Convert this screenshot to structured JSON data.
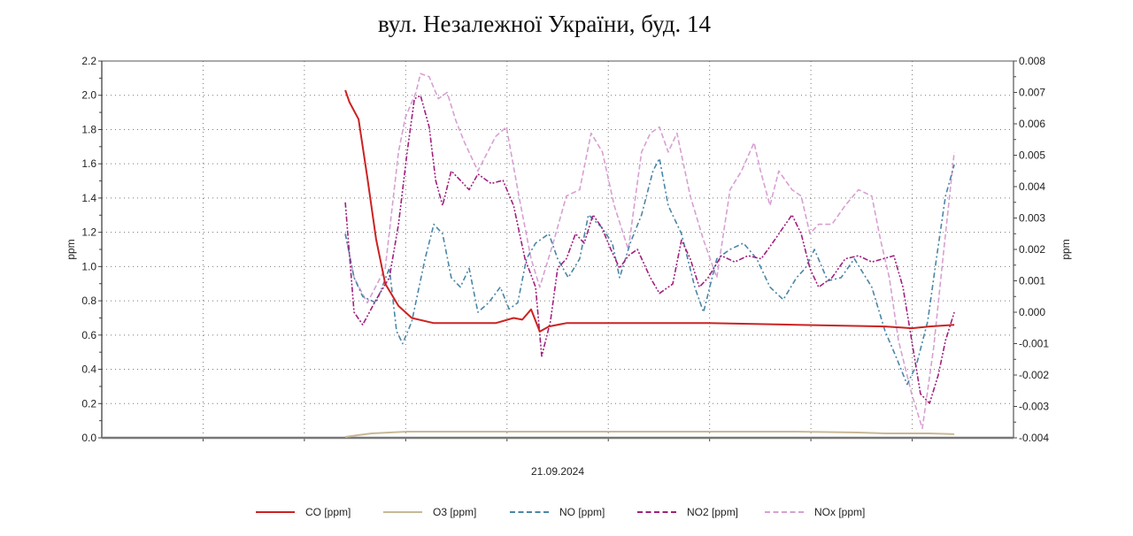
{
  "chart_data": {
    "type": "line",
    "title": "вул. Незалежної України, буд. 14",
    "xlabel": "21.09.2024",
    "ylabel_left": "ppm",
    "ylabel_right": "ppm",
    "x_unit": "hours",
    "xlim": [
      0,
      24
    ],
    "ylim_left": [
      0,
      2.2
    ],
    "ylim_right": [
      -0.004,
      0.008
    ],
    "left_ticks": [
      "0.0",
      "0.2",
      "0.4",
      "0.6",
      "0.8",
      "1.0",
      "1.2",
      "1.4",
      "1.6",
      "1.8",
      "2.0",
      "2.2"
    ],
    "right_ticks": [
      "-0.004",
      "-0.003",
      "-0.002",
      "-0.001",
      "0.000",
      "0.001",
      "0.002",
      "0.003",
      "0.004",
      "0.005",
      "0.006",
      "0.007",
      "0.008"
    ],
    "grid": true,
    "legend_position": "bottom",
    "series": [
      {
        "name": "CO [ppm]",
        "axis": "left",
        "color": "#cc2222",
        "dash": "solid",
        "x": [
          6.41,
          6.52,
          6.76,
          6.99,
          7.22,
          7.46,
          7.81,
          8.16,
          8.74,
          10.37,
          10.84,
          11.07,
          11.3,
          11.53,
          11.77,
          12.23,
          13.63,
          15.03,
          15.96,
          18.29,
          20.62,
          21.32,
          21.79,
          22.44
        ],
        "y": [
          2.03,
          1.96,
          1.86,
          1.52,
          1.16,
          0.9,
          0.77,
          0.7,
          0.67,
          0.67,
          0.7,
          0.69,
          0.75,
          0.62,
          0.65,
          0.67,
          0.67,
          0.67,
          0.67,
          0.66,
          0.65,
          0.64,
          0.65,
          0.66
        ]
      },
      {
        "name": "O3 [ppm]",
        "axis": "left",
        "color": "#c8b896",
        "dash": "solid",
        "x": [
          6.41,
          6.76,
          7.11,
          7.57,
          8.04,
          11.3,
          18.29,
          19.92,
          20.62,
          21.79,
          22.44
        ],
        "y": [
          0.005,
          0.016,
          0.026,
          0.031,
          0.036,
          0.036,
          0.036,
          0.031,
          0.026,
          0.026,
          0.021
        ]
      },
      {
        "name": "NO [ppm]",
        "axis": "right",
        "color": "#4a86a6",
        "dash": "dashdot",
        "x": [
          6.41,
          6.64,
          6.87,
          7.22,
          7.57,
          7.76,
          7.92,
          8.16,
          8.51,
          8.74,
          8.97,
          9.2,
          9.44,
          9.67,
          9.9,
          10.18,
          10.49,
          10.72,
          10.95,
          11.18,
          11.42,
          11.77,
          12.0,
          12.28,
          12.58,
          12.81,
          13.16,
          13.44,
          13.63,
          13.91,
          14.21,
          14.51,
          14.68,
          14.91,
          15.26,
          15.61,
          15.84,
          16.19,
          16.54,
          16.89,
          17.24,
          17.59,
          17.94,
          18.29,
          18.52,
          18.76,
          19.11,
          19.46,
          19.81,
          20.27,
          20.62,
          20.9,
          21.2,
          21.44,
          21.74,
          21.97,
          22.21,
          22.44
        ],
        "y": [
          0.0025,
          0.0011,
          0.0005,
          0.0003,
          0.0014,
          -0.0006,
          -0.001,
          -0.0003,
          0.0017,
          0.0028,
          0.0025,
          0.0011,
          0.0008,
          0.0014,
          0.0,
          0.0003,
          0.0008,
          0.0001,
          0.0003,
          0.0017,
          0.0022,
          0.0025,
          0.0017,
          0.0011,
          0.0017,
          0.0031,
          0.0027,
          0.0022,
          0.0011,
          0.0022,
          0.0031,
          0.0045,
          0.0049,
          0.0034,
          0.0025,
          0.0008,
          0.0,
          0.0017,
          0.002,
          0.0022,
          0.0017,
          0.0008,
          0.0004,
          0.0011,
          0.0014,
          0.002,
          0.001,
          0.0011,
          0.0017,
          0.0008,
          -0.0006,
          -0.0014,
          -0.0023,
          -0.0017,
          -0.0003,
          0.0017,
          0.0037,
          0.0047
        ]
      },
      {
        "name": "NO2 [ppm]",
        "axis": "right",
        "color": "#a0207e",
        "dash": "dashdotdot",
        "x": [
          6.41,
          6.64,
          6.87,
          7.22,
          7.57,
          7.81,
          8.04,
          8.23,
          8.39,
          8.62,
          8.79,
          8.97,
          9.2,
          9.44,
          9.67,
          9.9,
          10.25,
          10.56,
          10.84,
          11.14,
          11.42,
          11.58,
          11.81,
          12.0,
          12.23,
          12.47,
          12.7,
          12.93,
          13.16,
          13.4,
          13.63,
          13.86,
          14.1,
          14.44,
          14.68,
          15.03,
          15.26,
          15.49,
          15.73,
          15.96,
          16.31,
          16.66,
          17.01,
          17.36,
          17.71,
          17.94,
          18.17,
          18.41,
          18.64,
          18.87,
          19.22,
          19.57,
          19.92,
          20.27,
          20.57,
          20.85,
          21.09,
          21.32,
          21.55,
          21.79,
          22.02,
          22.21,
          22.44
        ],
        "y": [
          0.0035,
          0.0,
          -0.0004,
          0.0004,
          0.0011,
          0.0028,
          0.0051,
          0.0068,
          0.0069,
          0.0059,
          0.0042,
          0.0034,
          0.0045,
          0.0042,
          0.0039,
          0.0044,
          0.0041,
          0.0042,
          0.0034,
          0.0017,
          0.0008,
          -0.0014,
          -0.0003,
          0.0014,
          0.0017,
          0.0025,
          0.0022,
          0.0031,
          0.0027,
          0.002,
          0.0014,
          0.0018,
          0.002,
          0.0011,
          0.0006,
          0.0009,
          0.0023,
          0.0017,
          0.0008,
          0.0011,
          0.0018,
          0.0016,
          0.0018,
          0.0017,
          0.0023,
          0.0027,
          0.0031,
          0.0025,
          0.0014,
          0.0008,
          0.0011,
          0.0017,
          0.0018,
          0.0016,
          0.0017,
          0.0018,
          0.0008,
          -0.0009,
          -0.0026,
          -0.0029,
          -0.002,
          -0.0009,
          0.0
        ]
      },
      {
        "name": "NOx [ppm]",
        "axis": "right",
        "color": "#d7a0d2",
        "dash": "dashed",
        "x": [
          6.41,
          6.64,
          6.99,
          7.46,
          7.81,
          7.99,
          8.27,
          8.39,
          8.62,
          8.86,
          9.09,
          9.32,
          9.55,
          9.9,
          10.37,
          10.65,
          10.98,
          11.3,
          11.53,
          11.88,
          12.23,
          12.58,
          12.88,
          13.18,
          13.49,
          13.86,
          14.21,
          14.44,
          14.68,
          14.91,
          15.14,
          15.49,
          15.84,
          16.19,
          16.54,
          16.84,
          17.17,
          17.34,
          17.59,
          17.82,
          18.17,
          18.41,
          18.64,
          18.87,
          19.22,
          19.57,
          19.92,
          20.27,
          20.5,
          20.73,
          20.97,
          21.32,
          21.6,
          21.9,
          22.14,
          22.44
        ],
        "y": [
          0.0025,
          0.0011,
          0.0003,
          0.0014,
          0.0051,
          0.0062,
          0.007,
          0.0076,
          0.0075,
          0.0068,
          0.007,
          0.0061,
          0.0054,
          0.0045,
          0.0056,
          0.0059,
          0.0037,
          0.0017,
          0.0008,
          0.0022,
          0.0037,
          0.0039,
          0.0057,
          0.0051,
          0.0034,
          0.002,
          0.0051,
          0.0057,
          0.0059,
          0.0051,
          0.0057,
          0.0037,
          0.0023,
          0.0011,
          0.0039,
          0.0045,
          0.0054,
          0.0045,
          0.0034,
          0.0045,
          0.0039,
          0.0037,
          0.0025,
          0.0028,
          0.0028,
          0.0034,
          0.0039,
          0.0037,
          0.0023,
          0.0011,
          -0.0009,
          -0.0026,
          -0.0037,
          -0.0011,
          0.0017,
          0.0051
        ]
      }
    ]
  }
}
